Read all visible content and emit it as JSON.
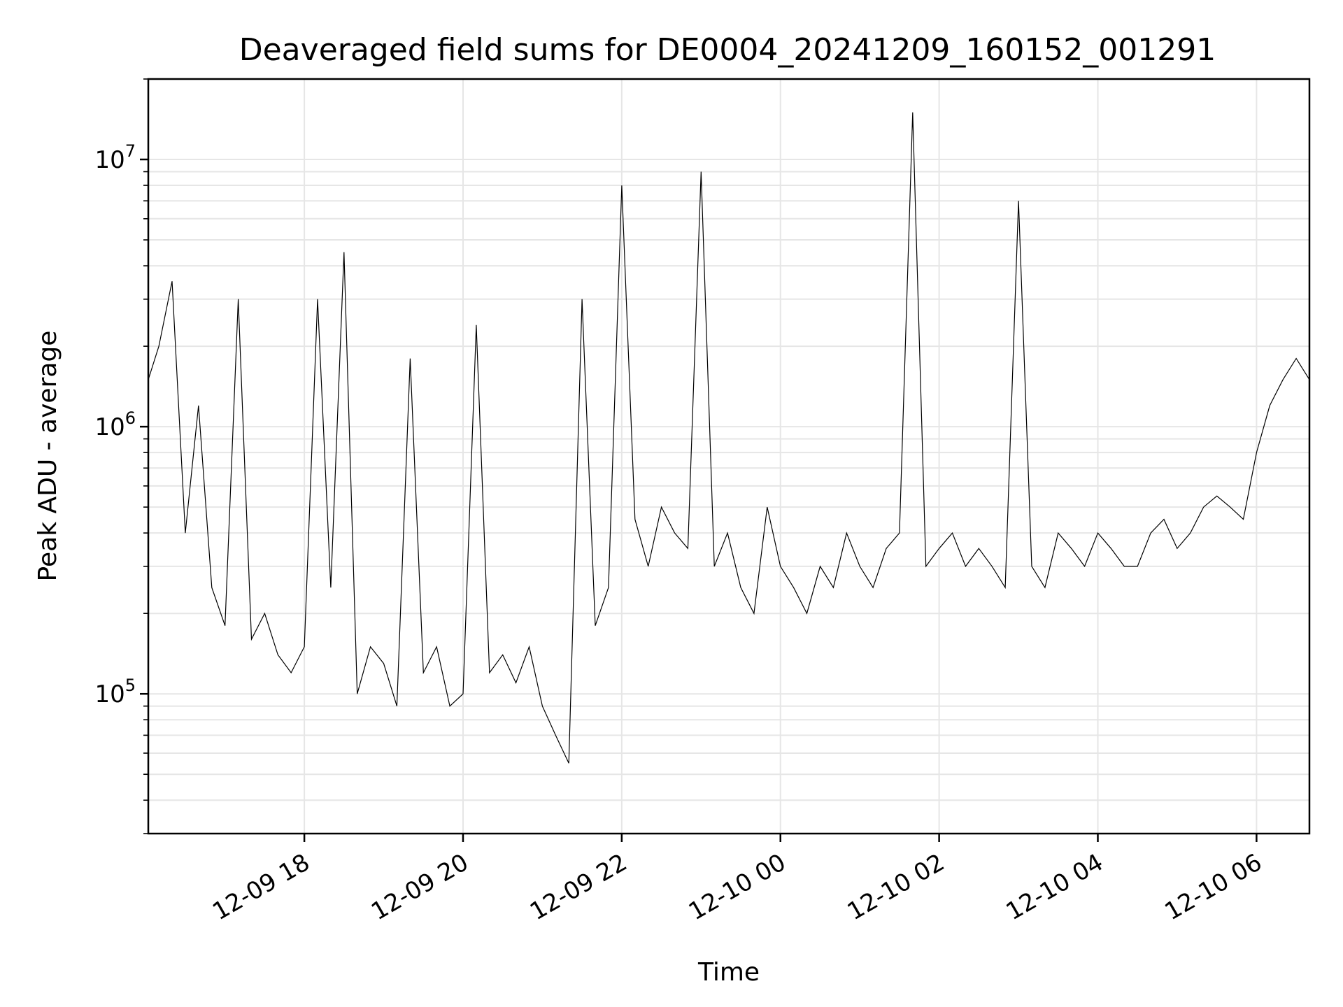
{
  "chart_data": {
    "type": "line",
    "title": "Deaveraged field sums for DE0004_20241209_160152_001291",
    "xlabel": "Time",
    "ylabel": "Peak ADU - average",
    "yscale": "log",
    "ylim": [
      30000,
      20000000
    ],
    "xlim": [
      "2024-12-09 16:02",
      "2024-12-10 06:40"
    ],
    "grid": true,
    "x_ticks": [
      {
        "t": "2024-12-09 18:00",
        "label": "12-09 18"
      },
      {
        "t": "2024-12-09 20:00",
        "label": "12-09 20"
      },
      {
        "t": "2024-12-09 22:00",
        "label": "12-09 22"
      },
      {
        "t": "2024-12-10 00:00",
        "label": "12-10 00"
      },
      {
        "t": "2024-12-10 02:00",
        "label": "12-10 02"
      },
      {
        "t": "2024-12-10 04:00",
        "label": "12-10 04"
      },
      {
        "t": "2024-12-10 06:00",
        "label": "12-10 06"
      }
    ],
    "y_ticks": [
      {
        "v": 100000,
        "base": "10",
        "exp": "5"
      },
      {
        "v": 1000000,
        "base": "10",
        "exp": "6"
      },
      {
        "v": 10000000,
        "base": "10",
        "exp": "7"
      }
    ],
    "series": [
      {
        "color": "#000000",
        "x": [
          "2024-12-09 16:02",
          "2024-12-09 16:10",
          "2024-12-09 16:20",
          "2024-12-09 16:30",
          "2024-12-09 16:40",
          "2024-12-09 16:50",
          "2024-12-09 17:00",
          "2024-12-09 17:10",
          "2024-12-09 17:20",
          "2024-12-09 17:30",
          "2024-12-09 17:40",
          "2024-12-09 17:50",
          "2024-12-09 18:00",
          "2024-12-09 18:10",
          "2024-12-09 18:20",
          "2024-12-09 18:30",
          "2024-12-09 18:40",
          "2024-12-09 18:50",
          "2024-12-09 19:00",
          "2024-12-09 19:10",
          "2024-12-09 19:20",
          "2024-12-09 19:30",
          "2024-12-09 19:40",
          "2024-12-09 19:50",
          "2024-12-09 20:00",
          "2024-12-09 20:10",
          "2024-12-09 20:20",
          "2024-12-09 20:30",
          "2024-12-09 20:40",
          "2024-12-09 20:50",
          "2024-12-09 21:00",
          "2024-12-09 21:10",
          "2024-12-09 21:20",
          "2024-12-09 21:30",
          "2024-12-09 21:40",
          "2024-12-09 21:50",
          "2024-12-09 22:00",
          "2024-12-09 22:10",
          "2024-12-09 22:20",
          "2024-12-09 22:30",
          "2024-12-09 22:40",
          "2024-12-09 22:50",
          "2024-12-09 23:00",
          "2024-12-09 23:10",
          "2024-12-09 23:20",
          "2024-12-09 23:30",
          "2024-12-09 23:40",
          "2024-12-09 23:50",
          "2024-12-10 00:00",
          "2024-12-10 00:10",
          "2024-12-10 00:20",
          "2024-12-10 00:30",
          "2024-12-10 00:40",
          "2024-12-10 00:50",
          "2024-12-10 01:00",
          "2024-12-10 01:10",
          "2024-12-10 01:20",
          "2024-12-10 01:30",
          "2024-12-10 01:40",
          "2024-12-10 01:50",
          "2024-12-10 02:00",
          "2024-12-10 02:10",
          "2024-12-10 02:20",
          "2024-12-10 02:30",
          "2024-12-10 02:40",
          "2024-12-10 02:50",
          "2024-12-10 03:00",
          "2024-12-10 03:10",
          "2024-12-10 03:20",
          "2024-12-10 03:30",
          "2024-12-10 03:40",
          "2024-12-10 03:50",
          "2024-12-10 04:00",
          "2024-12-10 04:10",
          "2024-12-10 04:20",
          "2024-12-10 04:30",
          "2024-12-10 04:40",
          "2024-12-10 04:50",
          "2024-12-10 05:00",
          "2024-12-10 05:10",
          "2024-12-10 05:20",
          "2024-12-10 05:30",
          "2024-12-10 05:40",
          "2024-12-10 05:50",
          "2024-12-10 06:00",
          "2024-12-10 06:10",
          "2024-12-10 06:20",
          "2024-12-10 06:30",
          "2024-12-10 06:40"
        ],
        "y": [
          1500000,
          2000000,
          3500000,
          400000,
          1200000,
          250000,
          180000,
          3000000,
          160000,
          200000,
          140000,
          120000,
          150000,
          3000000,
          250000,
          4500000,
          100000,
          150000,
          130000,
          90000,
          1800000,
          120000,
          150000,
          90000,
          100000,
          2400000,
          120000,
          140000,
          110000,
          150000,
          90000,
          70000,
          55000,
          3000000,
          180000,
          250000,
          8000000,
          450000,
          300000,
          500000,
          400000,
          350000,
          9000000,
          300000,
          400000,
          250000,
          200000,
          500000,
          300000,
          250000,
          200000,
          300000,
          250000,
          400000,
          300000,
          250000,
          350000,
          400000,
          15000000,
          300000,
          350000,
          400000,
          300000,
          350000,
          300000,
          250000,
          7000000,
          300000,
          250000,
          400000,
          350000,
          300000,
          400000,
          350000,
          300000,
          300000,
          400000,
          450000,
          350000,
          400000,
          500000,
          550000,
          500000,
          450000,
          800000,
          1200000,
          1500000,
          1800000,
          1500000
        ]
      }
    ]
  }
}
